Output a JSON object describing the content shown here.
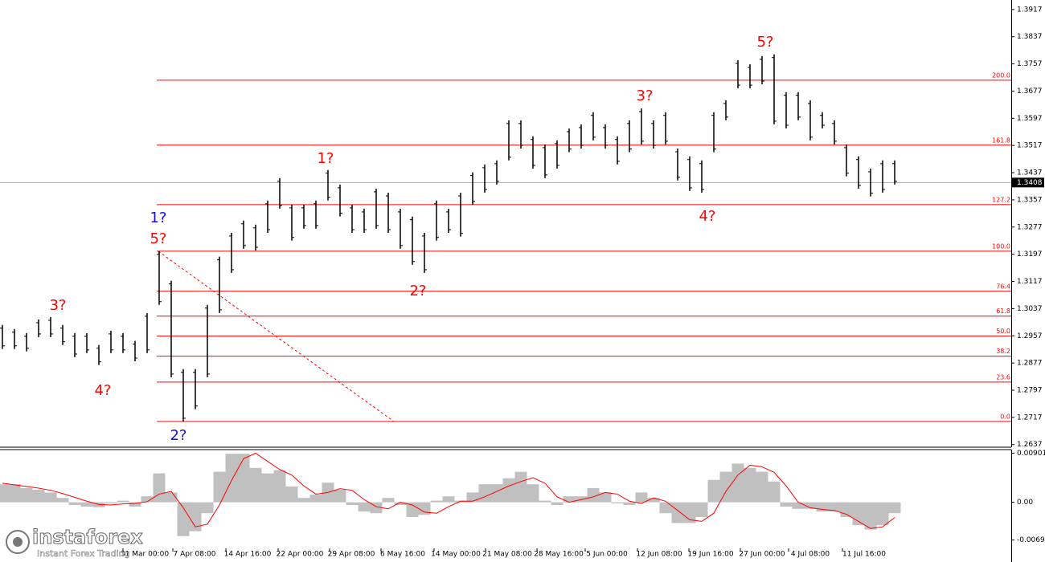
{
  "chart_data": {
    "type": "ohlc",
    "color": "#000000",
    "high": [
      1.2989,
      1.2977,
      1.2965,
      1.3005,
      1.3012,
      1.2989,
      1.2965,
      1.2965,
      1.293,
      1.2972,
      1.2965,
      1.2942,
      1.3024,
      1.3206,
      1.3119,
      1.2859,
      1.2859,
      1.3048,
      1.319,
      1.326,
      1.3296,
      1.3284,
      1.3355,
      1.3421,
      1.3343,
      1.3343,
      1.3355,
      1.3445,
      1.3402,
      1.3343,
      1.3331,
      1.339,
      1.3378,
      1.3331,
      1.3308,
      1.326,
      1.3355,
      1.3331,
      1.3378,
      1.3438,
      1.3461,
      1.3473,
      1.3591,
      1.3591,
      1.3544,
      1.352,
      1.3532,
      1.3567,
      1.3579,
      1.3615,
      1.3579,
      1.3544,
      1.3591,
      1.3626,
      1.3591,
      1.3615,
      1.3508,
      1.3485,
      1.3473,
      1.3615,
      1.365,
      1.3768,
      1.3756,
      1.378,
      1.3785,
      1.3674,
      1.3674,
      1.365,
      1.3615,
      1.3591,
      1.352,
      1.3485,
      1.3449,
      1.3473,
      1.3473
    ],
    "low": [
      1.2918,
      1.2918,
      1.2911,
      1.2953,
      1.2953,
      1.293,
      1.2894,
      1.2906,
      1.2871,
      1.2906,
      1.2906,
      1.2882,
      1.2906,
      1.3048,
      1.2835,
      1.2705,
      1.2741,
      1.2835,
      1.3024,
      1.3142,
      1.3213,
      1.3208,
      1.326,
      1.3331,
      1.3237,
      1.3272,
      1.3272,
      1.3355,
      1.3308,
      1.326,
      1.326,
      1.3272,
      1.326,
      1.3213,
      1.3166,
      1.3142,
      1.3237,
      1.326,
      1.3249,
      1.3343,
      1.3378,
      1.3402,
      1.3473,
      1.3508,
      1.3449,
      1.3421,
      1.3449,
      1.3497,
      1.3508,
      1.3532,
      1.3508,
      1.3461,
      1.3497,
      1.352,
      1.3508,
      1.352,
      1.3414,
      1.3383,
      1.3378,
      1.3497,
      1.3591,
      1.3685,
      1.3685,
      1.3697,
      1.3579,
      1.3567,
      1.3591,
      1.3532,
      1.3567,
      1.352,
      1.3426,
      1.339,
      1.3367,
      1.3378,
      1.3402
    ],
    "ylim": [
      1.2634,
      1.3945
    ],
    "yticks": [
      1.3917,
      1.3837,
      1.3757,
      1.3677,
      1.3597,
      1.3517,
      1.3437,
      1.3357,
      1.3277,
      1.3197,
      1.3117,
      1.3037,
      1.2957,
      1.2877,
      1.2797,
      1.2717,
      1.2637
    ],
    "last_price": 1.3408,
    "fib_color": "#ff0000",
    "fib_levels": [
      {
        "label": "200.0",
        "value": 1.3709
      },
      {
        "label": "161.8",
        "value": 1.3518
      },
      {
        "label": "127.2",
        "value": 1.3343
      },
      {
        "label": "100.0",
        "value": 1.3206
      },
      {
        "label": "76.4",
        "value": 1.3088
      },
      {
        "label": "61.8",
        "value": 1.3015
      },
      {
        "label": "50.0",
        "value": 1.2956
      },
      {
        "label": "38.2",
        "value": 1.2897
      },
      {
        "label": "23.6",
        "value": 1.2821
      },
      {
        "label": "0.0",
        "value": 1.2705
      }
    ],
    "x_labels": [
      "31 Mar 00:00",
      "7 Apr 08:00",
      "14 Apr 16:00",
      "22 Apr 00:00",
      "29 Apr 08:00",
      "6 May 16:00",
      "14 May 00:00",
      "21 May 08:00",
      "28 May 16:00",
      "5 Jun 00:00",
      "12 Jun 08:00",
      "19 Jun 16:00",
      "27 Jun 00:00",
      "4 Jul 08:00",
      "11 Jul 16:00"
    ],
    "annotations": [
      {
        "text": "3?",
        "color": "#ff0000"
      },
      {
        "text": "4?",
        "color": "#ff0000"
      },
      {
        "text": "1?",
        "color": "#1010e0"
      },
      {
        "text": "5?",
        "color": "#ff0000"
      },
      {
        "text": "2?",
        "color": "#1010e0"
      },
      {
        "text": "1?",
        "color": "#ff0000"
      },
      {
        "text": "2?",
        "color": "#ff0000"
      },
      {
        "text": "3?",
        "color": "#ff0000"
      },
      {
        "text": "4?",
        "color": "#ff0000"
      },
      {
        "text": "5?",
        "color": "#ff0000"
      }
    ],
    "indicator": {
      "type": "histogram",
      "ylim": [
        -0.01021,
        0.00966
      ],
      "yticks": [
        0.00901,
        {
          "value": 0,
          "label": "0.00"
        },
        -0.00692
      ],
      "histogram_color": "#c0c0c0",
      "signal_color": "#ff0000",
      "histogram": [
        0.0033,
        0.0033,
        0.0026,
        0.0023,
        0.0018,
        0.0008,
        -0.0005,
        -0.0008,
        -0.0009,
        -0.0002,
        0.0003,
        -0.0008,
        0.0011,
        0.0053,
        0.0018,
        -0.0062,
        -0.0053,
        -0.002,
        0.0056,
        0.0089,
        0.0089,
        0.0063,
        0.0053,
        0.0059,
        0.0029,
        0.0008,
        0.0014,
        0.0036,
        0.0023,
        -0.0005,
        -0.0017,
        -0.002,
        0.0008,
        -0.0005,
        -0.0027,
        -0.0023,
        0.0003,
        0.0011,
        0.0003,
        0.0018,
        0.0033,
        0.0033,
        0.0044,
        0.0056,
        0.0033,
        0.0003,
        -0.0005,
        0.0011,
        0.0011,
        0.0026,
        0.0018,
        -0.0002,
        -0.0005,
        0.0018,
        0.0008,
        -0.002,
        -0.0038,
        -0.0038,
        -0.0027,
        0.0041,
        0.0056,
        0.0071,
        0.0063,
        0.0056,
        0.0038,
        -0.0008,
        -0.0012,
        -0.0012,
        -0.0017,
        -0.0017,
        -0.0027,
        -0.0042,
        -0.005,
        -0.0042,
        -0.002
      ],
      "signal": [
        0.0035,
        0.0032,
        0.0029,
        0.0026,
        0.0022,
        0.0016,
        0.0009,
        0.0002,
        -0.0004,
        -0.0005,
        -0.0003,
        -0.0002,
        0.0001,
        0.0015,
        0.002,
        -0.001,
        -0.0045,
        -0.004,
        -0.0005,
        0.004,
        0.008,
        0.009,
        0.0075,
        0.006,
        0.005,
        0.003,
        0.0015,
        0.0018,
        0.0025,
        0.0022,
        0.0005,
        -0.0008,
        -0.0012,
        0,
        -0.0005,
        -0.0018,
        -0.002,
        -0.0008,
        0.0002,
        0.0002,
        0.001,
        0.002,
        0.003,
        0.0038,
        0.0045,
        0.0035,
        0.001,
        0,
        0.0005,
        0.001,
        0.0018,
        0.0015,
        0.0002,
        -0.0002,
        0.0008,
        0.0002,
        -0.0015,
        -0.0032,
        -0.0035,
        -0.002,
        0.002,
        0.005,
        0.0068,
        0.0065,
        0.0055,
        0.003,
        0,
        -0.001,
        -0.0013,
        -0.0015,
        -0.0022,
        -0.0035,
        -0.0048,
        -0.0045,
        -0.0028
      ]
    }
  },
  "watermark": {
    "brand": "instaforex",
    "tagline": "Instant Forex Trading"
  }
}
